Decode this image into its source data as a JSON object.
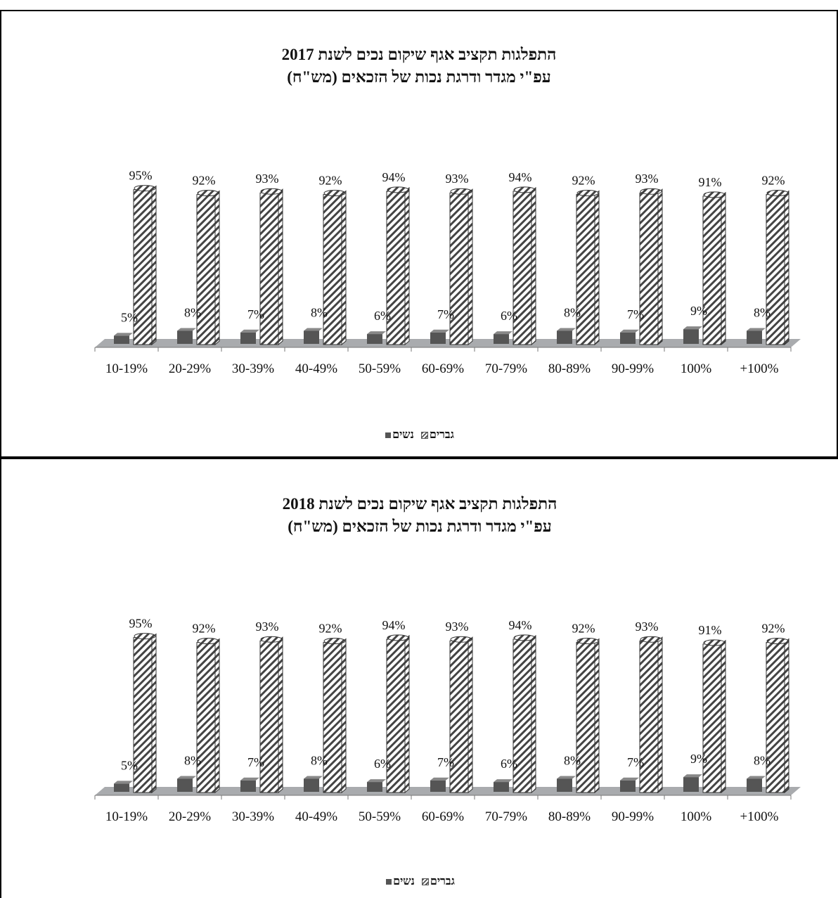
{
  "chart_data": [
    {
      "type": "bar",
      "title": "התפלגות תקציב אגף שיקום נכים לשנת 2017",
      "subtitle": "עפ\"י מגדר ודרגת נכות של הזכאים (מש\"ח)",
      "categories": [
        "10-19%",
        "20-29%",
        "30-39%",
        "40-49%",
        "50-59%",
        "60-69%",
        "70-79%",
        "80-89%",
        "90-99%",
        "100%",
        "+100%"
      ],
      "series": [
        {
          "name": "נשים",
          "values": [
            5,
            8,
            7,
            8,
            6,
            7,
            6,
            8,
            7,
            9,
            8
          ]
        },
        {
          "name": "גברים",
          "values": [
            95,
            92,
            93,
            92,
            94,
            93,
            94,
            92,
            93,
            91,
            92
          ]
        }
      ],
      "data_labels": {
        "women": [
          "5%",
          "8%",
          "7%",
          "8%",
          "6%",
          "7%",
          "6%",
          "8%",
          "7%",
          "9%",
          "8%"
        ],
        "men": [
          "95%",
          "92%",
          "93%",
          "92%",
          "94%",
          "93%",
          "94%",
          "92%",
          "93%",
          "91%",
          "92%"
        ]
      },
      "ylim": [
        0,
        100
      ],
      "grid": false,
      "legend": {
        "position": "bottom",
        "men_label": "גברים",
        "women_label": "נשים"
      },
      "colors": {
        "women": "#555555",
        "men": "#ffffff",
        "hatch": "#444444",
        "floor": "#a9abae"
      }
    },
    {
      "type": "bar",
      "title": "התפלגות תקציב אגף שיקום נכים לשנת 2018",
      "subtitle": "עפ\"י מגדר ודרגת נכות של הזכאים (מש\"ח)",
      "categories": [
        "10-19%",
        "20-29%",
        "30-39%",
        "40-49%",
        "50-59%",
        "60-69%",
        "70-79%",
        "80-89%",
        "90-99%",
        "100%",
        "+100%"
      ],
      "series": [
        {
          "name": "נשים",
          "values": [
            5,
            8,
            7,
            8,
            6,
            7,
            6,
            8,
            7,
            9,
            8
          ]
        },
        {
          "name": "גברים",
          "values": [
            95,
            92,
            93,
            92,
            94,
            93,
            94,
            92,
            93,
            91,
            92
          ]
        }
      ],
      "data_labels": {
        "women": [
          "5%",
          "8%",
          "7%",
          "8%",
          "6%",
          "7%",
          "6%",
          "8%",
          "7%",
          "9%",
          "8%"
        ],
        "men": [
          "95%",
          "92%",
          "93%",
          "92%",
          "94%",
          "93%",
          "94%",
          "92%",
          "93%",
          "91%",
          "92%"
        ]
      },
      "ylim": [
        0,
        100
      ],
      "grid": false,
      "legend": {
        "position": "bottom",
        "men_label": "גברים",
        "women_label": "נשים"
      },
      "colors": {
        "women": "#555555",
        "men": "#ffffff",
        "hatch": "#444444",
        "floor": "#a9abae"
      }
    }
  ]
}
